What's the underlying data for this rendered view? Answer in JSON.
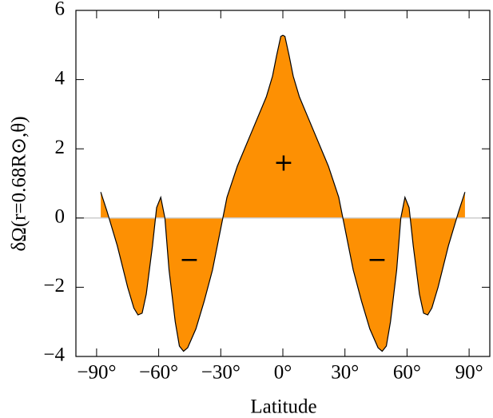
{
  "chart_data": {
    "type": "area",
    "xlabel": "Latitude",
    "ylabel": "δΩ(r=0.68R⊙,θ)",
    "color": "#fd9003",
    "line_color": "#000000",
    "zero_line": true,
    "x": [
      -88,
      -85,
      -80,
      -75,
      -72,
      -70,
      -68,
      -66,
      -63,
      -61,
      -59,
      -57,
      -55,
      -52,
      -50,
      -48,
      -46,
      -42,
      -38,
      -34,
      -30,
      -27,
      -22,
      -15,
      -8,
      -5,
      -3,
      -1,
      0,
      1,
      3,
      5,
      8,
      15,
      22,
      27,
      30,
      34,
      38,
      42,
      46,
      48,
      50,
      52,
      55,
      57,
      59,
      61,
      63,
      66,
      68,
      70,
      72,
      75,
      80,
      85,
      88
    ],
    "values": [
      0.75,
      0.2,
      -0.8,
      -2.0,
      -2.6,
      -2.8,
      -2.75,
      -2.2,
      -0.8,
      0.3,
      0.6,
      0.0,
      -1.5,
      -3.0,
      -3.7,
      -3.85,
      -3.75,
      -3.2,
      -2.4,
      -1.5,
      -0.3,
      0.6,
      1.5,
      2.5,
      3.5,
      4.1,
      4.7,
      5.25,
      5.28,
      5.25,
      4.7,
      4.1,
      3.5,
      2.5,
      1.5,
      0.6,
      -0.3,
      -1.5,
      -2.4,
      -3.2,
      -3.75,
      -3.85,
      -3.7,
      -3.0,
      -1.5,
      0.0,
      0.6,
      0.3,
      -0.8,
      -2.2,
      -2.75,
      -2.8,
      -2.6,
      -2.0,
      -0.8,
      0.2,
      0.75
    ],
    "xlim": [
      -100,
      100
    ],
    "ylim": [
      -4,
      6
    ],
    "xticks": [
      {
        "value": -90,
        "label": "−90°"
      },
      {
        "value": -60,
        "label": "−60°"
      },
      {
        "value": -30,
        "label": "−30°"
      },
      {
        "value": 0,
        "label": "0°"
      },
      {
        "value": 30,
        "label": "30°"
      },
      {
        "value": 60,
        "label": "60°"
      },
      {
        "value": 90,
        "label": "90°"
      }
    ],
    "yticks": [
      {
        "value": -4,
        "label": "−4"
      },
      {
        "value": -2,
        "label": "−2"
      },
      0,
      2,
      4,
      6
    ],
    "annotations": [
      "+",
      "−",
      "−"
    ]
  }
}
